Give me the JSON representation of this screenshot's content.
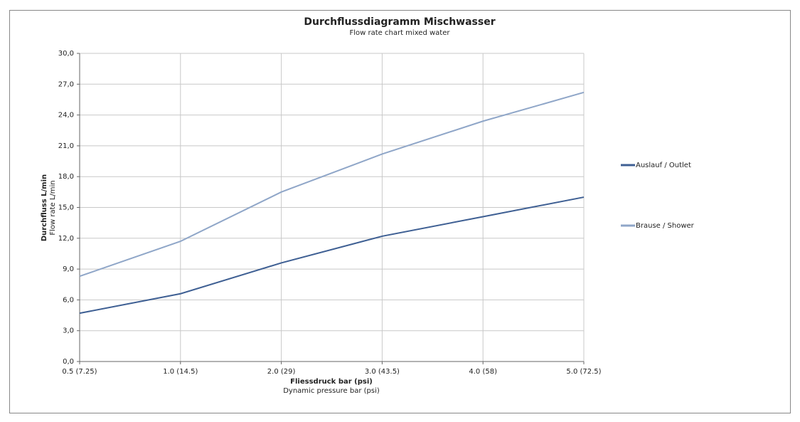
{
  "chart_data": {
    "type": "line",
    "title": "Durchflussdiagramm Mischwasser",
    "subtitle": "Flow rate chart mixed water",
    "xlabel": "Fliessdruck bar (psi)",
    "xlabel_sub": "Dynamic pressure bar (psi)",
    "ylabel": "Durchfluss L/min",
    "ylabel_sub": "Flow rate L/min",
    "categories": [
      "0.5 (7.25)",
      "1.0 (14.5)",
      "2.0 (29)",
      "3.0 (43.5)",
      "4.0 (58)",
      "5.0 (72.5)"
    ],
    "series": [
      {
        "name": "Auslauf / Outlet",
        "color": "#3e5f93",
        "values": [
          4.7,
          6.6,
          9.6,
          12.2,
          14.1,
          16.0
        ]
      },
      {
        "name": "Brause / Shower",
        "color": "#8fa6c8",
        "values": [
          8.3,
          11.7,
          16.5,
          20.2,
          23.4,
          26.2
        ]
      }
    ],
    "ylim": [
      0,
      30
    ],
    "yticks": [
      {
        "value": 0,
        "label": "0,0"
      },
      {
        "value": 3,
        "label": "3,0"
      },
      {
        "value": 6,
        "label": "6,0"
      },
      {
        "value": 9,
        "label": "9,0"
      },
      {
        "value": 12,
        "label": "12,0"
      },
      {
        "value": 15,
        "label": "15,0"
      },
      {
        "value": 18,
        "label": "18,0"
      },
      {
        "value": 21,
        "label": "21,0"
      },
      {
        "value": 24,
        "label": "24,0"
      },
      {
        "value": 27,
        "label": "27,0"
      },
      {
        "value": 30,
        "label": "30,0"
      }
    ],
    "grid": true,
    "legend": "right"
  }
}
